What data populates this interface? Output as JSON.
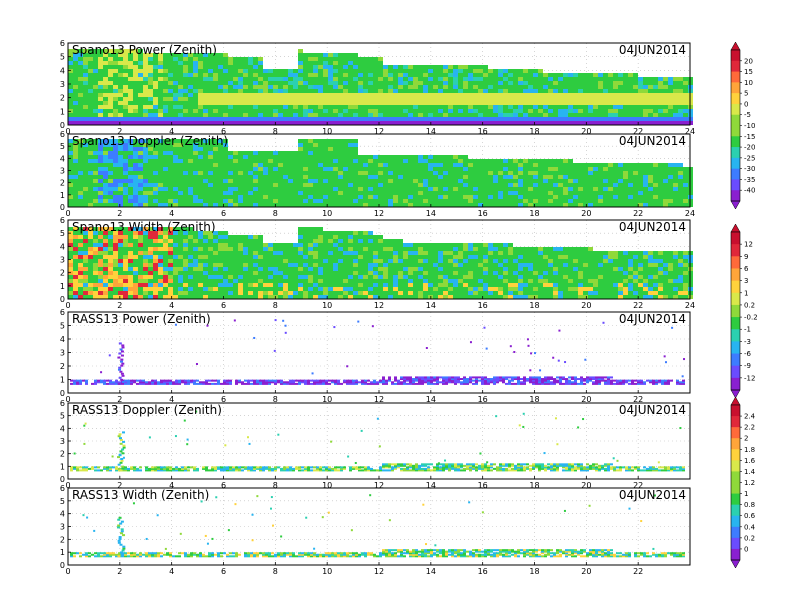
{
  "chart_data": {
    "type": "heatmap",
    "colors": [
      "#8a1fd0",
      "#6a4cff",
      "#3d7cff",
      "#28b4f0",
      "#2bd0b0",
      "#2ecc40",
      "#8fd93a",
      "#d9e84a",
      "#ffd23c",
      "#ffa53a",
      "#ff6a3a",
      "#e0283a",
      "#c8102e"
    ],
    "panels": [
      {
        "title": "Spano13 Power (Zenith)",
        "date": "04JUN2014",
        "x_ticks": [
          "0",
          "2",
          "4",
          "6",
          "8",
          "10",
          "12",
          "14",
          "16",
          "18",
          "20",
          "22",
          "24"
        ],
        "y_ticks": [
          "0",
          "1",
          "2",
          "3",
          "4",
          "5",
          "6"
        ],
        "xlim": [
          0,
          24
        ],
        "ylim": [
          0,
          6
        ],
        "pattern": "power"
      },
      {
        "title": "Spano13 Doppler (Zenith)",
        "date": "04JUN2014",
        "x_ticks": [
          "0",
          "2",
          "4",
          "6",
          "8",
          "10",
          "12",
          "14",
          "16",
          "18",
          "20",
          "22",
          "24"
        ],
        "y_ticks": [
          "0",
          "1",
          "2",
          "3",
          "4",
          "5",
          "6"
        ],
        "xlim": [
          0,
          24
        ],
        "ylim": [
          0,
          6
        ],
        "pattern": "doppler"
      },
      {
        "title": "Spano13 Width (Zenith)",
        "date": "04JUN2014",
        "x_ticks": [
          "0",
          "2",
          "4",
          "6",
          "8",
          "10",
          "12",
          "14",
          "16",
          "18",
          "20",
          "22",
          "24"
        ],
        "y_ticks": [
          "0",
          "1",
          "2",
          "3",
          "4",
          "5",
          "6"
        ],
        "xlim": [
          0,
          24
        ],
        "ylim": [
          0,
          6
        ],
        "pattern": "width"
      },
      {
        "title": "RASS13 Power (Zenith)",
        "date": "04JUN2014",
        "x_ticks": [
          "0",
          "2",
          "4",
          "6",
          "8",
          "10",
          "12",
          "14",
          "16",
          "18",
          "20",
          "22"
        ],
        "y_ticks": [
          "0",
          "1",
          "2",
          "3",
          "4",
          "5",
          "6"
        ],
        "xlim": [
          0,
          24
        ],
        "ylim": [
          0,
          6
        ],
        "pattern": "rass_power"
      },
      {
        "title": "RASS13 Doppler (Zenith)",
        "date": "04JUN2014",
        "x_ticks": [
          "0",
          "2",
          "4",
          "6",
          "8",
          "10",
          "12",
          "14",
          "16",
          "18",
          "20",
          "22"
        ],
        "y_ticks": [
          "0",
          "1",
          "2",
          "3",
          "4",
          "5",
          "6"
        ],
        "xlim": [
          0,
          24
        ],
        "ylim": [
          0,
          6
        ],
        "pattern": "rass_doppler"
      },
      {
        "title": "RASS13 Width (Zenith)",
        "date": "04JUN2014",
        "x_ticks": [
          "0",
          "2",
          "4",
          "6",
          "8",
          "10",
          "12",
          "14",
          "16",
          "18",
          "20",
          "22"
        ],
        "y_ticks": [
          "0",
          "1",
          "2",
          "3",
          "4",
          "5",
          "6"
        ],
        "xlim": [
          0,
          24
        ],
        "ylim": [
          0,
          6
        ],
        "pattern": "rass_width"
      }
    ],
    "colorbars": [
      {
        "labels": [
          "20",
          "15",
          "10",
          "5",
          "0",
          "-5",
          "-10",
          "-15",
          "-20",
          "-25",
          "-30",
          "-35",
          "-40"
        ]
      },
      {
        "labels": [
          "12",
          "9",
          "6",
          "3",
          "1",
          "0.2",
          "-0.2",
          "-1",
          "-3",
          "-6",
          "-9",
          "-12"
        ]
      },
      {
        "labels": [
          "2.4",
          "2.2",
          "2",
          "1.8",
          "1.6",
          "1.4",
          "1.2",
          "1",
          "0.8",
          "0.6",
          "0.4",
          "0.2",
          "0"
        ]
      }
    ]
  }
}
